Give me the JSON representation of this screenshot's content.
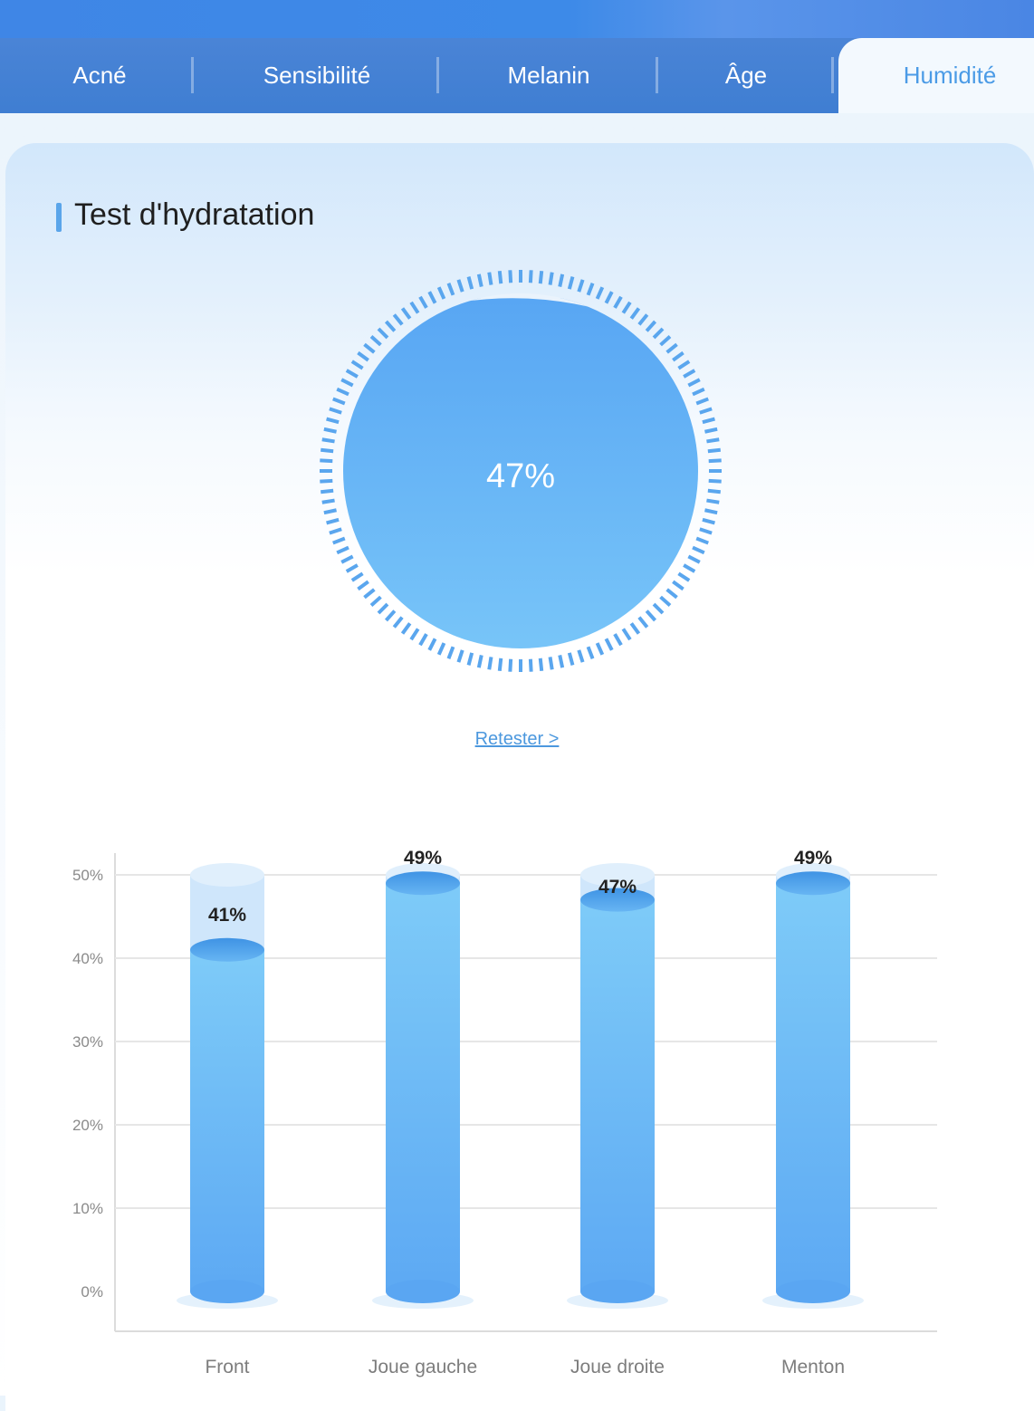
{
  "tabs": [
    {
      "label": "Acné",
      "active": false
    },
    {
      "label": "Sensibilité",
      "active": false
    },
    {
      "label": "Melanin",
      "active": false
    },
    {
      "label": "Âge",
      "active": false
    },
    {
      "label": "Humidité",
      "active": true
    }
  ],
  "section_title": "Test d'hydratation",
  "hydration": {
    "value_label": "47%",
    "value": 47
  },
  "retest_label": "Retester >",
  "colors": {
    "accent": "#4b9be6",
    "bar_top": "#5fb0f2",
    "bar_bottom": "#7dcaf7",
    "tab_bar": "#3f7ed2"
  },
  "chart_data": {
    "type": "bar",
    "categories": [
      "Front",
      "Joue gauche",
      "Joue droite",
      "Menton"
    ],
    "values": [
      41,
      49,
      47,
      49
    ],
    "value_labels": [
      "41%",
      "49%",
      "47%",
      "49%"
    ],
    "y_ticks": [
      "0%",
      "10%",
      "20%",
      "30%",
      "40%",
      "50%"
    ],
    "ylim": [
      0,
      50
    ],
    "grid": true
  }
}
